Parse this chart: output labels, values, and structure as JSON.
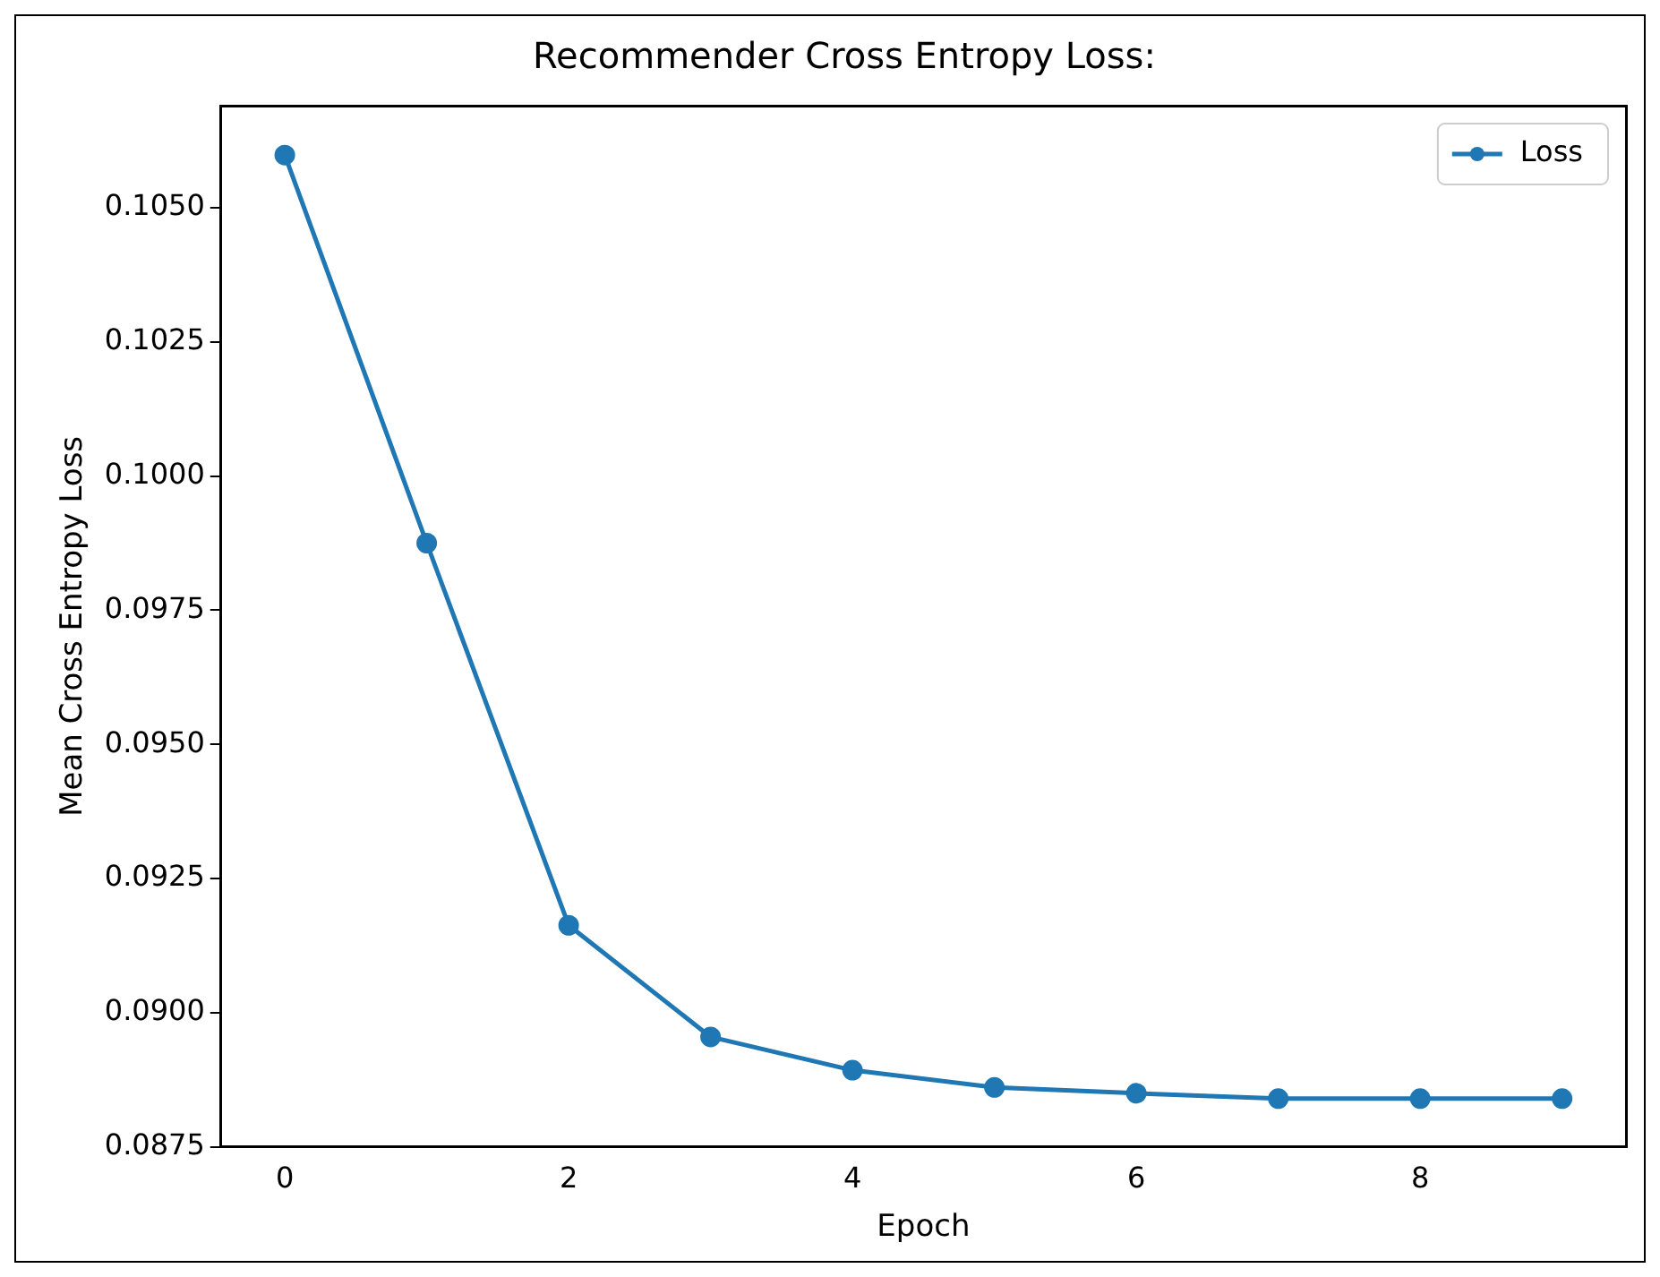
{
  "chart_data": {
    "type": "line",
    "title": "Recommender Cross Entropy Loss:",
    "xlabel": "Epoch",
    "ylabel": "Mean Cross Entropy Loss",
    "x": [
      0,
      1,
      2,
      3,
      4,
      5,
      6,
      7,
      8,
      9
    ],
    "series": [
      {
        "name": "Loss",
        "color": "#1f77b4",
        "values": [
          0.10598,
          0.09875,
          0.09163,
          0.08955,
          0.08893,
          0.08861,
          0.0885,
          0.0884,
          0.0884,
          0.0884
        ]
      }
    ],
    "xlim": [
      -0.45,
      9.45
    ],
    "xticks": [
      0,
      2,
      4,
      6,
      8
    ],
    "ylim": [
      0.0875,
      0.1069
    ],
    "yticks": [
      {
        "value": 0.0875,
        "label": "0.0875"
      },
      {
        "value": 0.09,
        "label": "0.0900"
      },
      {
        "value": 0.0925,
        "label": "0.0925"
      },
      {
        "value": 0.095,
        "label": "0.0950"
      },
      {
        "value": 0.0975,
        "label": "0.0975"
      },
      {
        "value": 0.1,
        "label": "0.1000"
      },
      {
        "value": 0.1025,
        "label": "0.1025"
      },
      {
        "value": 0.105,
        "label": "0.1050"
      }
    ],
    "grid": false,
    "legend": "top right",
    "marker": "circle",
    "line_style": "solid"
  }
}
